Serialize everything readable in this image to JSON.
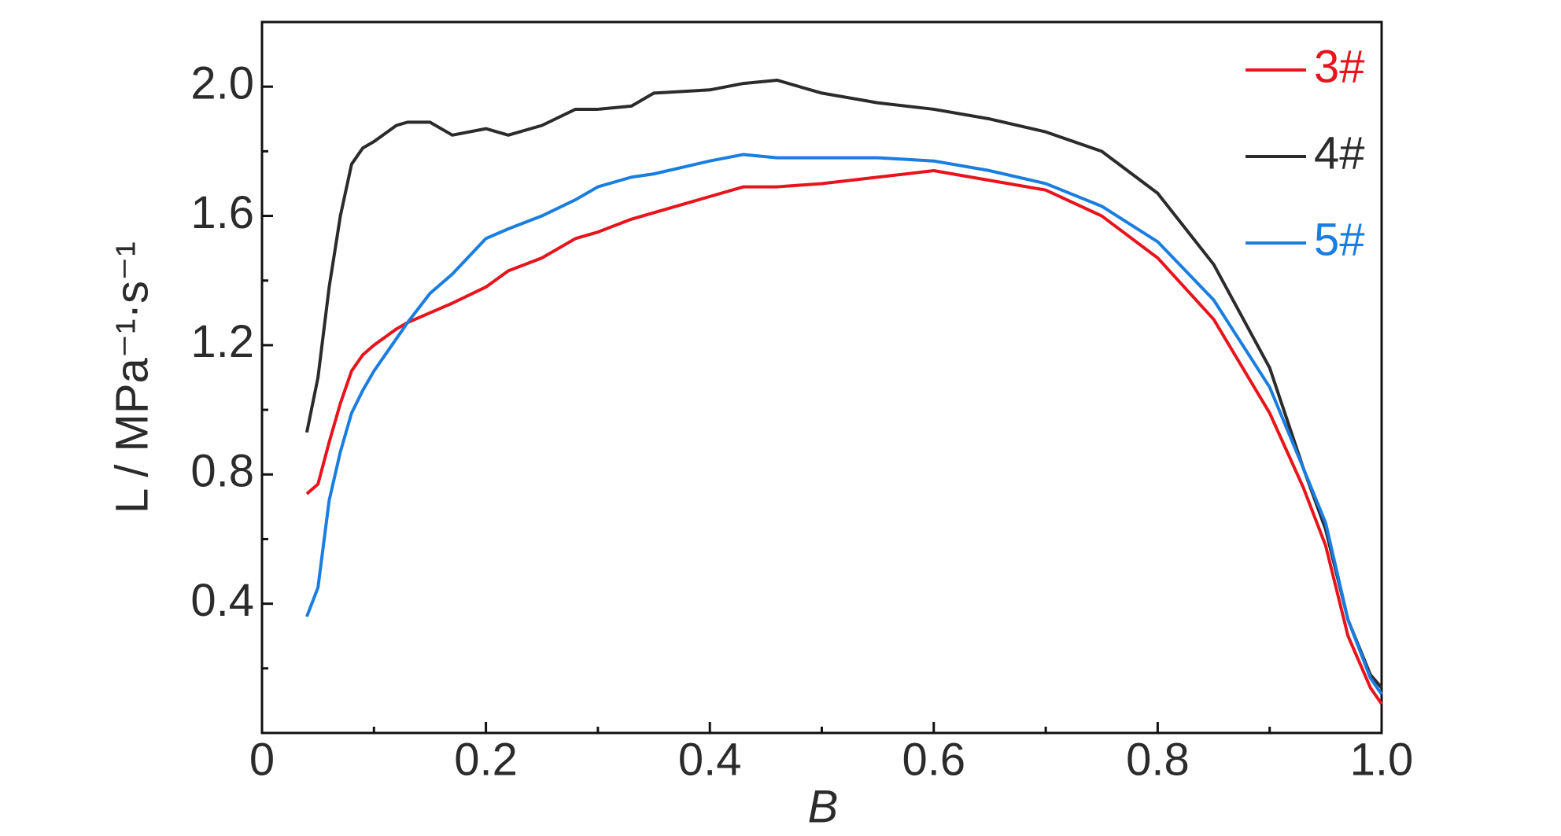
{
  "chart_data": {
    "type": "line",
    "x_label": "B",
    "y_label": "L / MPa⁻¹·s⁻¹",
    "x": [
      0.04,
      0.05,
      0.06,
      0.07,
      0.08,
      0.09,
      0.1,
      0.12,
      0.13,
      0.15,
      0.17,
      0.2,
      0.22,
      0.25,
      0.28,
      0.3,
      0.33,
      0.35,
      0.4,
      0.43,
      0.46,
      0.5,
      0.55,
      0.6,
      0.65,
      0.7,
      0.75,
      0.8,
      0.85,
      0.9,
      0.93,
      0.95,
      0.97,
      0.99,
      1.0
    ],
    "series": [
      {
        "name": "3#",
        "color": "#e8141c",
        "values": [
          0.74,
          0.77,
          0.9,
          1.02,
          1.12,
          1.17,
          1.2,
          1.25,
          1.27,
          1.3,
          1.33,
          1.38,
          1.43,
          1.47,
          1.53,
          1.55,
          1.59,
          1.61,
          1.66,
          1.69,
          1.69,
          1.7,
          1.72,
          1.74,
          1.71,
          1.68,
          1.6,
          1.47,
          1.28,
          0.99,
          0.76,
          0.58,
          0.3,
          0.14,
          0.09
        ]
      },
      {
        "name": "4#",
        "color": "#2b2b2b",
        "values": [
          0.93,
          1.1,
          1.38,
          1.6,
          1.76,
          1.81,
          1.83,
          1.88,
          1.89,
          1.89,
          1.85,
          1.87,
          1.85,
          1.88,
          1.93,
          1.93,
          1.94,
          1.98,
          1.99,
          2.01,
          2.02,
          1.98,
          1.95,
          1.93,
          1.9,
          1.86,
          1.8,
          1.67,
          1.45,
          1.13,
          0.82,
          0.63,
          0.35,
          0.18,
          0.14
        ]
      },
      {
        "name": "5#",
        "color": "#1a7de0",
        "values": [
          0.36,
          0.45,
          0.72,
          0.87,
          0.99,
          1.06,
          1.12,
          1.22,
          1.27,
          1.36,
          1.42,
          1.53,
          1.56,
          1.6,
          1.65,
          1.69,
          1.72,
          1.73,
          1.77,
          1.79,
          1.78,
          1.78,
          1.78,
          1.77,
          1.74,
          1.7,
          1.63,
          1.52,
          1.34,
          1.07,
          0.82,
          0.65,
          0.35,
          0.17,
          0.12
        ]
      }
    ],
    "xlim": [
      0,
      1
    ],
    "ylim": [
      0,
      2.2
    ],
    "xticks": [
      0,
      0.2,
      0.4,
      0.6,
      0.8,
      {
        "value": 1,
        "label": "1.0"
      }
    ],
    "yticks": [
      0.4,
      0.8,
      1.2,
      1.6,
      {
        "value": 2,
        "label": "2.0"
      }
    ],
    "xminor": [
      0.1,
      0.3,
      0.5,
      0.7,
      0.9
    ],
    "yminor": [
      0.2,
      0.6,
      1.0,
      1.4,
      1.8
    ],
    "grid": false,
    "legend": "upper right"
  }
}
